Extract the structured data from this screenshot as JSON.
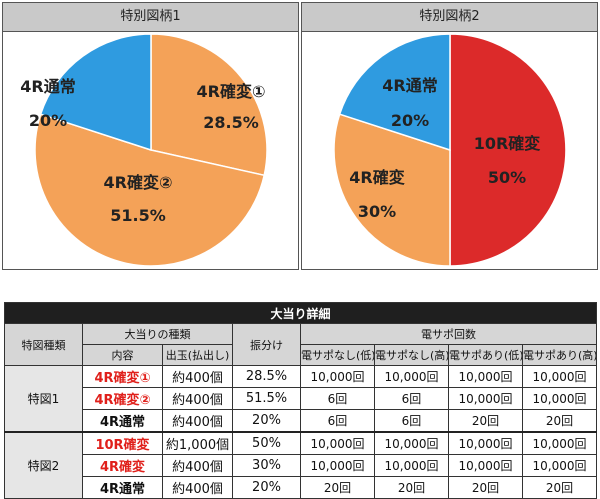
{
  "charts": [
    {
      "header": "特別図柄1",
      "slices": [
        {
          "name": "4R確変①",
          "value": 28.5,
          "label": "28.5%",
          "color": "#f4a258"
        },
        {
          "name": "4R確変②",
          "value": 51.5,
          "label": "51.5%",
          "color": "#f4a258"
        },
        {
          "name": "4R通常",
          "value": 20,
          "label": "20%",
          "color": "#2f9be0"
        }
      ]
    },
    {
      "header": "特別図柄2",
      "slices": [
        {
          "name": "10R確変",
          "value": 50,
          "label": "50%",
          "color": "#dc2a2a"
        },
        {
          "name": "4R確変",
          "value": 30,
          "label": "30%",
          "color": "#f4a258"
        },
        {
          "name": "4R通常",
          "value": 20,
          "label": "20%",
          "color": "#2f9be0"
        }
      ]
    }
  ],
  "chart_data": [
    {
      "type": "pie",
      "title": "特別図柄1",
      "categories": [
        "4R確変①",
        "4R確変②",
        "4R通常"
      ],
      "values": [
        28.5,
        51.5,
        20
      ]
    },
    {
      "type": "pie",
      "title": "特別図柄2",
      "categories": [
        "10R確変",
        "4R確変",
        "4R通常"
      ],
      "values": [
        50,
        30,
        20
      ]
    }
  ],
  "table": {
    "title": "大当り詳細",
    "h_special_type": "特図種類",
    "h_jackpot_type": "大当りの種類",
    "h_distribution": "振分け",
    "h_densapo": "電サポ回数",
    "h_content": "内容",
    "h_payout": "出玉(払出し)",
    "h_cols": [
      "電サポなし(低)",
      "電サポなし(高)",
      "電サポあり(低)",
      "電サポあり(高)"
    ],
    "groups": [
      {
        "name": "特図1",
        "rows": [
          {
            "content": "4R確変①",
            "red": true,
            "payout": "約400個",
            "dist": "28.5%",
            "counts": [
              "10,000回",
              "10,000回",
              "10,000回",
              "10,000回"
            ]
          },
          {
            "content": "4R確変②",
            "red": true,
            "payout": "約400個",
            "dist": "51.5%",
            "counts": [
              "6回",
              "6回",
              "10,000回",
              "10,000回"
            ]
          },
          {
            "content": "4R通常",
            "red": false,
            "payout": "約400個",
            "dist": "20%",
            "counts": [
              "6回",
              "6回",
              "20回",
              "20回"
            ]
          }
        ]
      },
      {
        "name": "特図2",
        "rows": [
          {
            "content": "10R確変",
            "red": true,
            "payout": "約1,000個",
            "dist": "50%",
            "counts": [
              "10,000回",
              "10,000回",
              "10,000回",
              "10,000回"
            ]
          },
          {
            "content": "4R確変",
            "red": true,
            "payout": "約400個",
            "dist": "30%",
            "counts": [
              "10,000回",
              "10,000回",
              "10,000回",
              "10,000回"
            ]
          },
          {
            "content": "4R通常",
            "red": false,
            "payout": "約400個",
            "dist": "20%",
            "counts": [
              "20回",
              "20回",
              "20回",
              "20回"
            ]
          }
        ]
      }
    ]
  }
}
